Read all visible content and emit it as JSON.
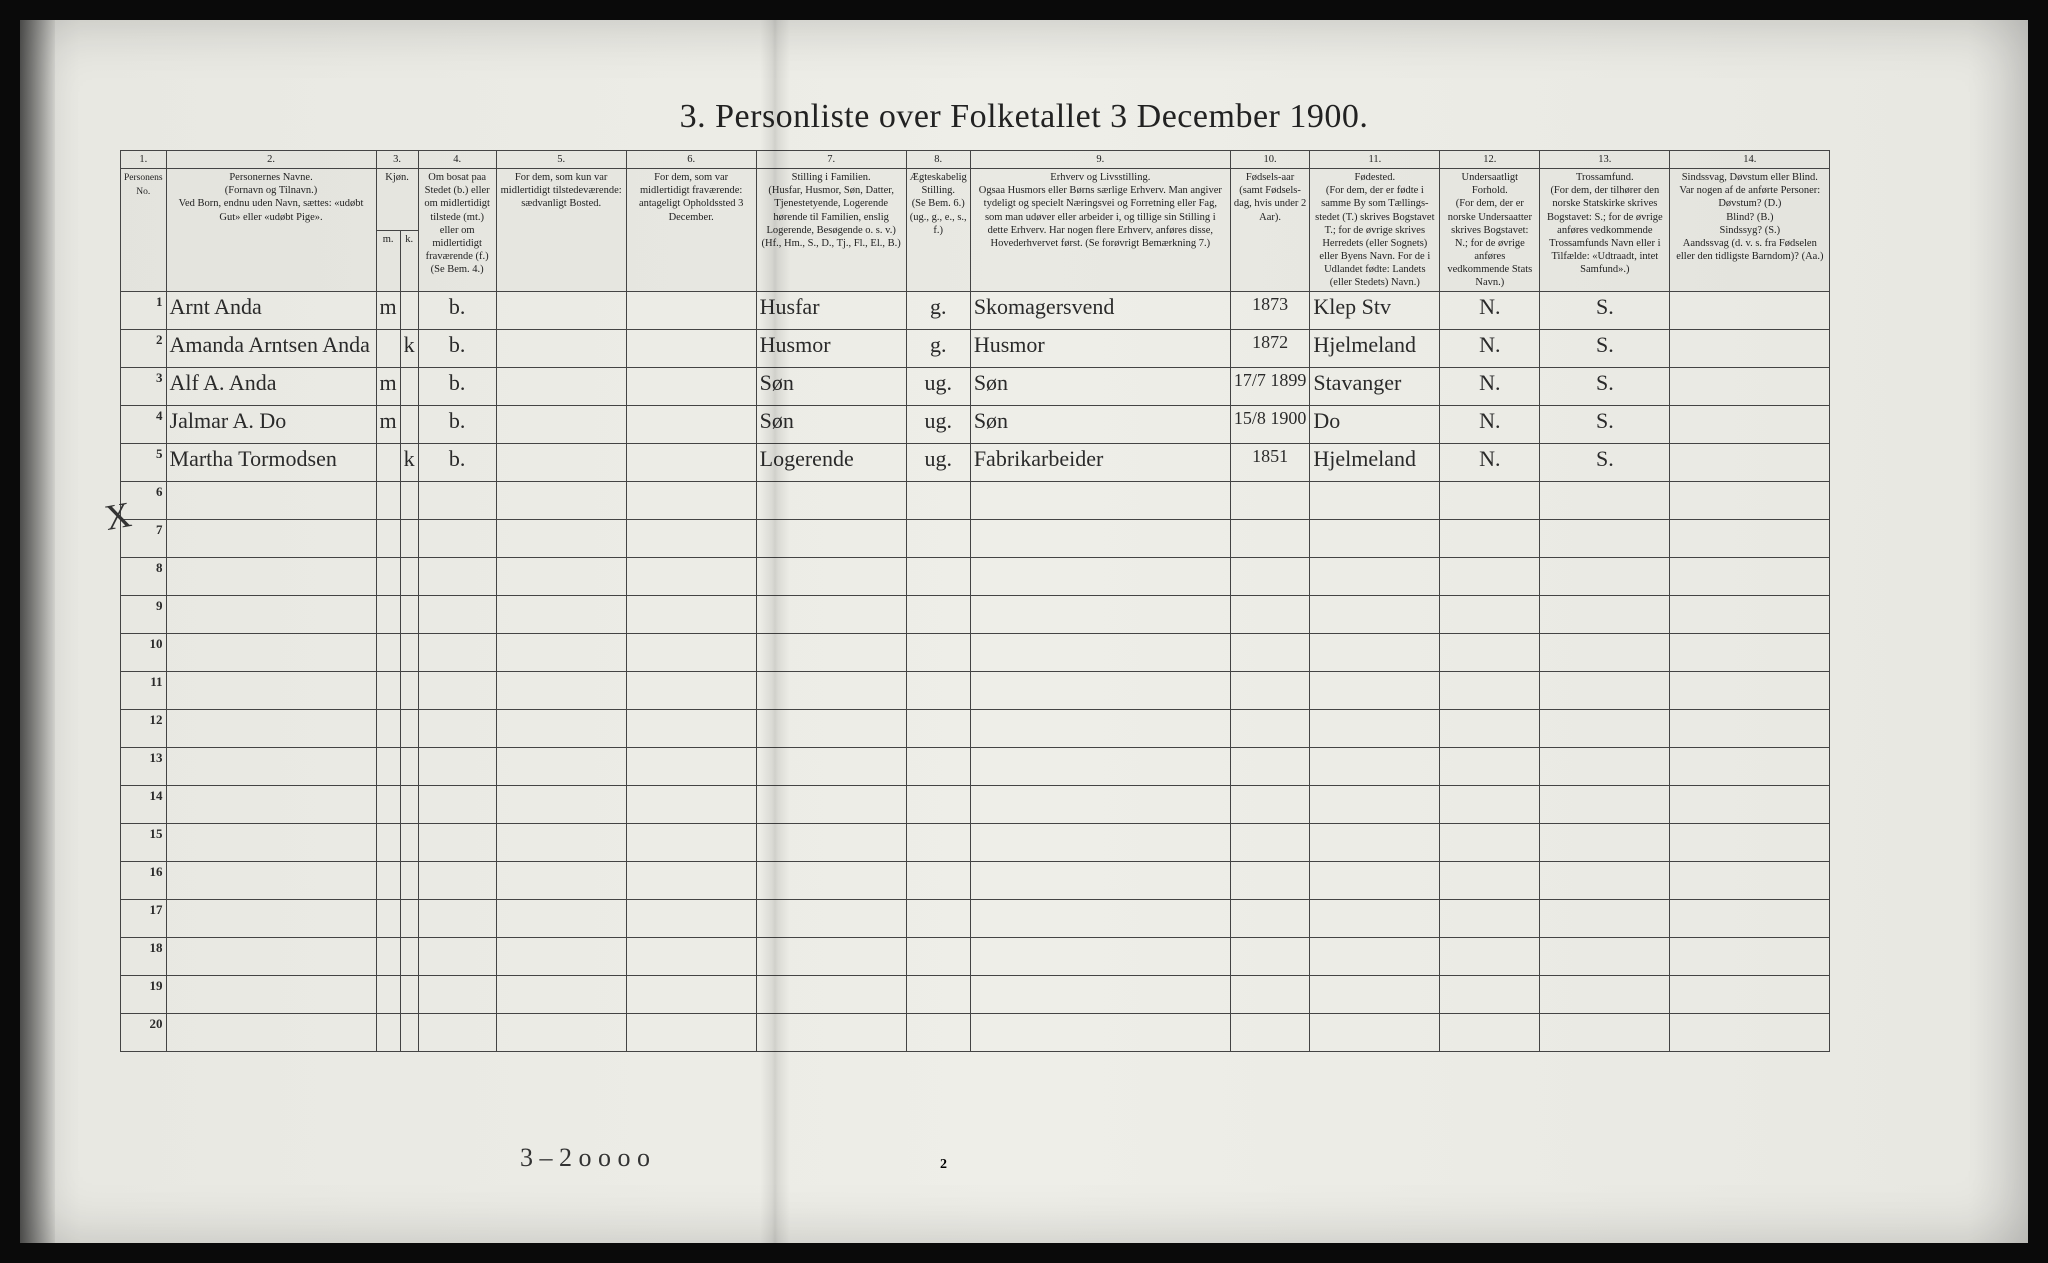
{
  "title": "3. Personliste over Folketallet 3 December 1900.",
  "columns": {
    "c1": "1.",
    "c2": "2.",
    "c3": "3.",
    "c4": "4.",
    "c5": "5.",
    "c6": "6.",
    "c7": "7.",
    "c8": "8.",
    "c9": "9.",
    "c10": "10.",
    "c11": "11.",
    "c12": "12.",
    "c13": "13.",
    "c14": "14."
  },
  "headers": {
    "h1": "Personens No.",
    "h2": "Personernes Navne.\n(Fornavn og Tilnavn.)\nVed Born, endnu uden Navn, sættes: «udøbt Gut» eller «udøbt Pige».",
    "h3": "Kjøn.",
    "h3a": "Mand.",
    "h3b": "Kvinde.",
    "h3sub": "m. | k.",
    "h4": "Om bosat paa Stedet (b.) eller om midlertidigt tilstede (mt.) eller om midlertidigt fraværende (f.) (Se Bem. 4.)",
    "h5": "For dem, som kun var midlertidigt tilstedeværende:\nsædvanligt Bosted.",
    "h6": "For dem, som var midlertidigt fraværende:\nantageligt Opholdssted 3 December.",
    "h7": "Stilling i Familien.\n(Husfar, Husmor, Søn, Datter, Tjenestetyende, Logerende hørende til Familien, enslig Logerende, Besøgende o. s. v.)\n(Hf., Hm., S., D., Tj., Fl., El., B.)",
    "h8": "Ægteskabelig Stilling.\n(Se Bem. 6.)\n(ug., g., e., s., f.)",
    "h9": "Erhverv og Livsstilling.\nOgsaa Husmors eller Børns særlige Erhverv. Man angiver tydeligt og specielt Næringsvei og Forretning eller Fag, som man udøver eller arbeider i, og tillige sin Stilling i dette Erhverv. Har nogen flere Erhverv, anføres disse, Hovederhvervet først. (Se forøvrigt Bemærkning 7.)",
    "h10": "Fødsels-aar\n(samt Fødsels-dag, hvis under 2 Aar).",
    "h11": "Fødested.\n(For dem, der er fødte i samme By som Tællings-stedet (T.) skrives Bogstavet T.; for de øvrige skrives Herredets (eller Sognets) eller Byens Navn. For de i Udlandet fødte: Landets (eller Stedets) Navn.)",
    "h12": "Undersaatligt Forhold.\n(For dem, der er norske Undersaatter skrives Bogstavet: N.; for de øvrige anføres vedkommende Stats Navn.)",
    "h13": "Trossamfund.\n(For dem, der tilhører den norske Statskirke skrives Bogstavet: S.; for de øvrige anføres vedkommende Trossamfunds Navn eller i Tilfælde: «Udtraadt, intet Samfund».)",
    "h14": "Sindssvag, Døvstum eller Blind.\nVar nogen af de anførte Personer:\nDøvstum? (D.)\nBlind? (B.)\nSindssyg? (S.)\nAandssvag (d. v. s. fra Fødselen eller den tidligste Barndom)? (Aa.)"
  },
  "rows": [
    {
      "n": "1",
      "name": "Arnt Anda",
      "sex": "m",
      "res": "b.",
      "c5": "",
      "c6": "",
      "fam": "Husfar",
      "mar": "g.",
      "occ": "Skomagersvend",
      "yr": "1873",
      "bp": "Klep Stv",
      "nat": "N.",
      "rel": "S.",
      "c14": ""
    },
    {
      "n": "2",
      "name": "Amanda Arntsen Anda",
      "sex": "k",
      "res": "b.",
      "c5": "",
      "c6": "",
      "fam": "Husmor",
      "mar": "g.",
      "occ": "Husmor",
      "yr": "1872",
      "bp": "Hjelmeland",
      "nat": "N.",
      "rel": "S.",
      "c14": ""
    },
    {
      "n": "3",
      "name": "Alf A. Anda",
      "sex": "m",
      "res": "b.",
      "c5": "",
      "c6": "",
      "fam": "Søn",
      "mar": "ug.",
      "occ": "Søn",
      "yr": "17/7 1899",
      "bp": "Stavanger",
      "nat": "N.",
      "rel": "S.",
      "c14": ""
    },
    {
      "n": "4",
      "name": "Jalmar A. Do",
      "sex": "m",
      "res": "b.",
      "c5": "",
      "c6": "",
      "fam": "Søn",
      "mar": "ug.",
      "occ": "Søn",
      "yr": "15/8 1900",
      "bp": "Do",
      "nat": "N.",
      "rel": "S.",
      "c14": ""
    },
    {
      "n": "5",
      "name": "Martha Tormodsen",
      "sex": "k",
      "res": "b.",
      "c5": "",
      "c6": "",
      "fam": "Logerende",
      "mar": "ug.",
      "occ": "Fabrikarbeider",
      "yr": "1851",
      "bp": "Hjelmeland",
      "nat": "N.",
      "rel": "S.",
      "c14": ""
    },
    {
      "n": "6"
    },
    {
      "n": "7"
    },
    {
      "n": "8"
    },
    {
      "n": "9"
    },
    {
      "n": "10"
    },
    {
      "n": "11"
    },
    {
      "n": "12"
    },
    {
      "n": "13"
    },
    {
      "n": "14"
    },
    {
      "n": "15"
    },
    {
      "n": "16"
    },
    {
      "n": "17"
    },
    {
      "n": "18"
    },
    {
      "n": "19"
    },
    {
      "n": "20"
    }
  ],
  "footer": {
    "lefthand": "3 – 2    o o    o o",
    "pagenum": "2"
  },
  "colwidths": {
    "c1": "26",
    "c2": "210",
    "c3a": "18",
    "c3b": "18",
    "c4": "78",
    "c5": "130",
    "c6": "130",
    "c7": "150",
    "c8": "62",
    "c9": "260",
    "c10": "70",
    "c11": "130",
    "c12": "100",
    "c13": "130",
    "c14": "160"
  }
}
